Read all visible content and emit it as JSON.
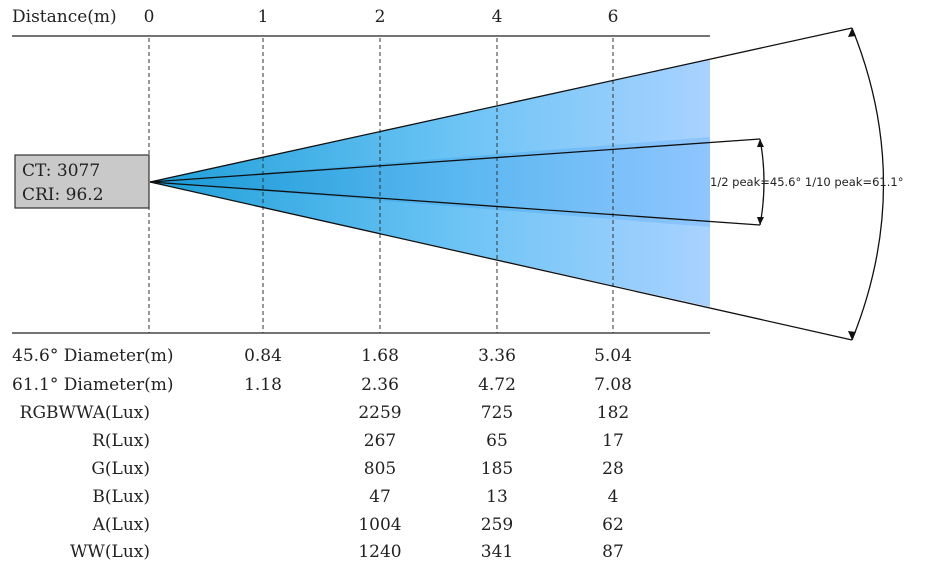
{
  "header": {
    "distance_label": "Distance(m)",
    "distances": [
      "0",
      "1",
      "2",
      "4",
      "6"
    ]
  },
  "source_box": {
    "ct": "CT: 3077",
    "cri": "CRI: 96.2"
  },
  "beam_annotation": "1/2 peak=45.6° 1/10 peak=61.1°",
  "table": {
    "rows": [
      {
        "label": "45.6° Diameter(m)",
        "values": [
          "0.84",
          "1.68",
          "3.36",
          "5.04"
        ]
      },
      {
        "label": "61.1° Diameter(m)",
        "values": [
          "1.18",
          "2.36",
          "4.72",
          "7.08"
        ]
      },
      {
        "label": "RGBWWA(Lux)",
        "values": [
          "",
          "2259",
          "725",
          "182"
        ]
      },
      {
        "label": "R(Lux)",
        "values": [
          "",
          "267",
          "65",
          "17"
        ]
      },
      {
        "label": "G(Lux)",
        "values": [
          "",
          "805",
          "185",
          "28"
        ]
      },
      {
        "label": "B(Lux)",
        "values": [
          "",
          "47",
          "13",
          "4"
        ]
      },
      {
        "label": "A(Lux)",
        "values": [
          "",
          "1004",
          "259",
          "62"
        ]
      },
      {
        "label": "WW(Lux)",
        "values": [
          "",
          "1240",
          "341",
          "87"
        ]
      }
    ]
  },
  "colors": {
    "beam_near": "#29abe2",
    "beam_far": "#a6d0ff",
    "source_box": "#c8c8c8",
    "lines": "#222222"
  }
}
